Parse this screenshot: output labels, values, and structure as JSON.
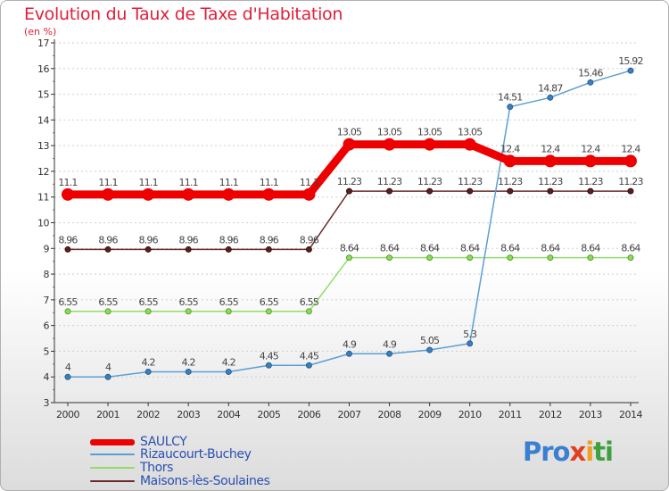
{
  "header": {
    "title": "Evolution du Taux de Taxe d'Habitation",
    "unit": "(en %)"
  },
  "brand": {
    "parts": [
      "Pro",
      "x",
      "i",
      "ti"
    ]
  },
  "colors": {
    "title": "#e0203a",
    "legend_text": "#2a4fb0",
    "axis": "#333333",
    "grid": "#cfcfcf"
  },
  "chart_data": {
    "type": "line",
    "title": "Evolution du Taux de Taxe d'Habitation",
    "ylabel": "(en %)",
    "xlabel": "",
    "x": [
      "2000",
      "2001",
      "2002",
      "2003",
      "2004",
      "2005",
      "2006",
      "2007",
      "2008",
      "2009",
      "2010",
      "2011",
      "2012",
      "2013",
      "2014"
    ],
    "ylim": [
      3,
      17
    ],
    "yticks": [
      3,
      4,
      5,
      6,
      7,
      8,
      9,
      10,
      11,
      12,
      13,
      14,
      15,
      16,
      17
    ],
    "grid": "horizontal dotted",
    "legend_position": "bottom-left",
    "series": [
      {
        "name": "SAULCY",
        "color": "#ee0000",
        "values": [
          11.1,
          11.1,
          11.1,
          11.1,
          11.1,
          11.1,
          11.1,
          13.05,
          13.05,
          13.05,
          13.05,
          12.4,
          12.4,
          12.4,
          12.4
        ],
        "labels": [
          "11.1",
          "11.1",
          "11.1",
          "11.1",
          "11.1",
          "11.1",
          "11.1",
          "13.05",
          "13.05",
          "13.05",
          "13.05",
          "12.4",
          "12.4",
          "12.4",
          "12.4"
        ]
      },
      {
        "name": "Rizaucourt-Buchey",
        "color": "#5a9fd4",
        "values": [
          4,
          4,
          4.2,
          4.2,
          4.2,
          4.45,
          4.45,
          4.9,
          4.9,
          5.05,
          5.3,
          14.51,
          14.87,
          15.46,
          15.92
        ],
        "labels": [
          "4",
          "4",
          "4.2",
          "4.2",
          "4.2",
          "4.45",
          "4.45",
          "4.9",
          "4.9",
          "5.05",
          "5.3",
          "14.51",
          "14.87",
          "15.46",
          "15.92"
        ]
      },
      {
        "name": "Thors",
        "color": "#90dd6a",
        "values": [
          6.55,
          6.55,
          6.55,
          6.55,
          6.55,
          6.55,
          6.55,
          8.64,
          8.64,
          8.64,
          8.64,
          8.64,
          8.64,
          8.64,
          8.64
        ],
        "labels": [
          "6.55",
          "6.55",
          "6.55",
          "6.55",
          "6.55",
          "6.55",
          "6.55",
          "8.64",
          "8.64",
          "8.64",
          "8.64",
          "8.64",
          "8.64",
          "8.64",
          "8.64"
        ]
      },
      {
        "name": "Maisons-lès-Soulaines",
        "color": "#6b2a2a",
        "values": [
          8.96,
          8.96,
          8.96,
          8.96,
          8.96,
          8.96,
          8.96,
          11.23,
          11.23,
          11.23,
          11.23,
          11.23,
          11.23,
          11.23,
          11.23
        ],
        "labels": [
          "8.96",
          "8.96",
          "8.96",
          "8.96",
          "8.96",
          "8.96",
          "8.96",
          "11.23",
          "11.23",
          "11.23",
          "11.23",
          "11.23",
          "11.23",
          "11.23",
          "11.23"
        ]
      }
    ]
  }
}
